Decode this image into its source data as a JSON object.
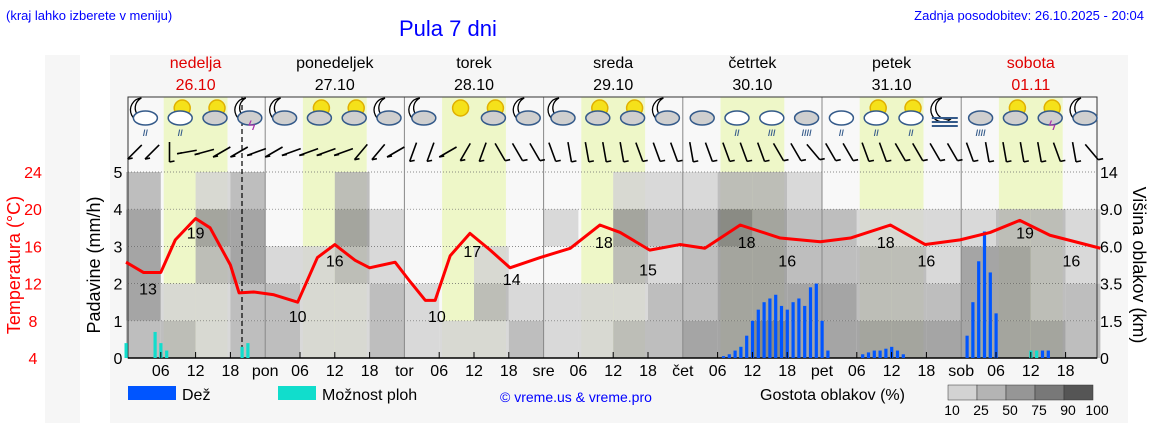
{
  "header": {
    "note": "(kraj lahko izberete v meniju)",
    "title": "Pula 7 dni",
    "updated": "Zadnja posodobitev: 26.10.2025 - 20:04"
  },
  "days": [
    {
      "name": "nedelja",
      "date": "26.10",
      "weekend": true,
      "abbr": ""
    },
    {
      "name": "ponedeljek",
      "date": "27.10",
      "weekend": false,
      "abbr": "pon"
    },
    {
      "name": "torek",
      "date": "28.10",
      "weekend": false,
      "abbr": "tor"
    },
    {
      "name": "sreda",
      "date": "29.10",
      "weekend": false,
      "abbr": "sre"
    },
    {
      "name": "četrtek",
      "date": "30.10",
      "weekend": false,
      "abbr": "čet"
    },
    {
      "name": "petek",
      "date": "31.10",
      "weekend": false,
      "abbr": "pet"
    },
    {
      "name": "sobota",
      "date": "01.11",
      "weekend": true,
      "abbr": "sob"
    }
  ],
  "icons": [
    "moon-cloud-light-rain",
    "sun-cloud-light-rain",
    "sun-cloud",
    "moon-cloud-thunder",
    "moon-cloud",
    "sun-cloud",
    "sun-cloud",
    "moon-cloud",
    "moon-cloud",
    "sun",
    "sun-cloud",
    "moon-cloud",
    "moon-cloud",
    "sun-cloud",
    "sun-cloud",
    "moon-cloud",
    "cloud",
    "cloud-light-rain",
    "cloud-moderate-rain",
    "cloud-heavy-rain",
    "cloud-light-rain",
    "sun-cloud-light-rain",
    "sun-cloud-light-rain",
    "moon-fog",
    "cloud-heavy-rain",
    "sun-cloud",
    "sun-cloud-thunder",
    "moon-cloud"
  ],
  "wind_direction_deg": [
    45,
    45,
    0,
    80,
    75,
    60,
    60,
    70,
    60,
    70,
    70,
    70,
    70,
    40,
    40,
    60,
    20,
    20,
    60,
    30,
    20,
    -30,
    -30,
    -30,
    -20,
    -10,
    -10,
    -10,
    -10,
    -20,
    -20,
    -20,
    -10,
    -20,
    -20,
    -20,
    -20,
    -30,
    -30,
    -40,
    -30,
    -30,
    -20,
    -20,
    -30,
    -30,
    -30,
    -30,
    -20,
    -10,
    -10,
    -10,
    -10,
    -20,
    -10,
    -40
  ],
  "colors": {
    "temp": "#ff0000",
    "rain": "#0055ff",
    "showers": "#11ddcc",
    "daylight": "#eef7c8",
    "now_line": "#000000"
  },
  "chart_data": {
    "type": "line",
    "title": "Pula 7 dni",
    "x_unit": "hours from 26.10 00:00",
    "xlim": [
      0,
      168
    ],
    "x_ticks": [
      "06",
      "12",
      "18"
    ],
    "now_hour": 20,
    "daylight_hours": [
      6.5,
      17.5
    ],
    "left_axis": {
      "label": "Temperatura (°C)",
      "ticks": [
        24,
        20,
        16,
        12,
        8,
        4
      ],
      "range": [
        4,
        24
      ]
    },
    "rain_axis": {
      "label": "Padavine (mm/h)",
      "ticks": [
        0,
        1,
        2,
        3,
        4,
        5
      ],
      "range": [
        0,
        5
      ]
    },
    "right_axis": {
      "label": "Višina oblakov (km)",
      "ticks": [
        "0",
        "1.5",
        "3.5",
        "6.0",
        "9.0",
        "14"
      ]
    },
    "temperature": [
      [
        0,
        14.3
      ],
      [
        3,
        13.2
      ],
      [
        6,
        13.2
      ],
      [
        8.5,
        16.7
      ],
      [
        12,
        19
      ],
      [
        14.5,
        18
      ],
      [
        18,
        14
      ],
      [
        19.5,
        11
      ],
      [
        22,
        11.1
      ],
      [
        25.5,
        10.8
      ],
      [
        29.6,
        10
      ],
      [
        33,
        14.8
      ],
      [
        36,
        16.2
      ],
      [
        39.5,
        14.5
      ],
      [
        42,
        13.7
      ],
      [
        46.4,
        14.3
      ],
      [
        49,
        12.2
      ],
      [
        51.6,
        10.2
      ],
      [
        53.3,
        10.2
      ],
      [
        55.9,
        15
      ],
      [
        59.3,
        17.4
      ],
      [
        62.8,
        15.6
      ],
      [
        66.2,
        13.7
      ],
      [
        71.4,
        14.8
      ],
      [
        76.6,
        15.8
      ],
      [
        81.7,
        18.3
      ],
      [
        85.2,
        17.5
      ],
      [
        90.3,
        15.6
      ],
      [
        95.5,
        16.2
      ],
      [
        99.8,
        15.8
      ],
      [
        105.9,
        18.3
      ],
      [
        112.8,
        16.9
      ],
      [
        119.7,
        16.5
      ],
      [
        124.9,
        16.9
      ],
      [
        131.8,
        18.3
      ],
      [
        137.8,
        16.2
      ],
      [
        143.8,
        16.7
      ],
      [
        149,
        17.5
      ],
      [
        154.1,
        18.8
      ],
      [
        159.3,
        17.2
      ],
      [
        168,
        15.8
      ]
    ],
    "temp_labels": [
      [
        3.8,
        13
      ],
      [
        12,
        19
      ],
      [
        29.6,
        10
      ],
      [
        36,
        16
      ],
      [
        53.6,
        10
      ],
      [
        59.7,
        17
      ],
      [
        66.5,
        14
      ],
      [
        82.4,
        18
      ],
      [
        90,
        15
      ],
      [
        107,
        18
      ],
      [
        114,
        16
      ],
      [
        131,
        18
      ],
      [
        138,
        16
      ],
      [
        155,
        19
      ],
      [
        163,
        16
      ]
    ],
    "rain": [
      [
        103,
        0.05
      ],
      [
        104,
        0.1
      ],
      [
        105,
        0.2
      ],
      [
        106,
        0.3
      ],
      [
        107,
        0.6
      ],
      [
        108,
        1.0
      ],
      [
        109,
        1.3
      ],
      [
        110,
        1.5
      ],
      [
        111,
        1.6
      ],
      [
        112,
        1.7
      ],
      [
        113,
        1.4
      ],
      [
        114,
        1.3
      ],
      [
        115,
        1.5
      ],
      [
        116,
        1.6
      ],
      [
        117,
        1.4
      ],
      [
        118,
        1.9
      ],
      [
        119,
        2.0
      ],
      [
        120,
        1.0
      ],
      [
        121,
        0.2
      ],
      [
        127,
        0.1
      ],
      [
        128,
        0.15
      ],
      [
        129,
        0.2
      ],
      [
        130,
        0.2
      ],
      [
        131,
        0.25
      ],
      [
        132,
        0.3
      ],
      [
        133,
        0.2
      ],
      [
        134,
        0.1
      ],
      [
        145,
        0.6
      ],
      [
        146,
        1.5
      ],
      [
        147,
        2.6
      ],
      [
        148,
        3.4
      ],
      [
        149,
        2.3
      ],
      [
        150,
        1.2
      ],
      [
        158,
        0.2
      ],
      [
        159,
        0.2
      ]
    ],
    "showers": [
      [
        0,
        0.4
      ],
      [
        5,
        0.7
      ],
      [
        6,
        0.4
      ],
      [
        7,
        0.2
      ],
      [
        20,
        0.3
      ],
      [
        21,
        0.4
      ],
      [
        106,
        0.3
      ],
      [
        146,
        0.7
      ],
      [
        147,
        1.2
      ],
      [
        148,
        1.5
      ],
      [
        149,
        0.9
      ],
      [
        156,
        0.2
      ],
      [
        157,
        0.2
      ]
    ],
    "cloud_cover_pct_by_6h_and_height_band": [
      [
        40,
        50,
        60,
        50,
        30
      ],
      [
        30,
        10,
        0,
        0,
        0
      ],
      [
        20,
        10,
        30,
        60,
        10
      ],
      [
        30,
        40,
        50,
        60,
        30
      ],
      [
        30,
        30,
        10,
        0,
        0
      ],
      [
        20,
        20,
        10,
        0,
        0
      ],
      [
        10,
        20,
        40,
        70,
        30
      ],
      [
        30,
        40,
        20,
        10,
        0
      ],
      [
        20,
        10,
        0,
        0,
        0
      ],
      [
        10,
        0,
        0,
        0,
        0
      ],
      [
        20,
        30,
        20,
        0,
        0
      ],
      [
        30,
        20,
        0,
        0,
        0
      ],
      [
        20,
        10,
        0,
        20,
        0
      ],
      [
        20,
        10,
        0,
        0,
        0
      ],
      [
        30,
        20,
        30,
        50,
        10
      ],
      [
        40,
        30,
        20,
        40,
        20
      ],
      [
        50,
        40,
        30,
        30,
        10
      ],
      [
        70,
        60,
        70,
        80,
        40
      ],
      [
        80,
        70,
        60,
        60,
        30
      ],
      [
        60,
        50,
        40,
        30,
        10
      ],
      [
        60,
        50,
        40,
        30,
        0
      ],
      [
        50,
        40,
        30,
        10,
        0
      ],
      [
        50,
        40,
        30,
        20,
        0
      ],
      [
        50,
        40,
        20,
        10,
        0
      ],
      [
        60,
        60,
        50,
        20,
        0
      ],
      [
        60,
        50,
        50,
        40,
        0
      ],
      [
        50,
        40,
        40,
        30,
        0
      ],
      [
        40,
        30,
        20,
        10,
        0
      ]
    ],
    "legend": {
      "rain": "Dež",
      "showers": "Možnost ploh",
      "credit": "© vreme.us & vreme.pro",
      "cloud_title": "Gostota oblakov (%)",
      "cloud_levels": [
        "10",
        "25",
        "50",
        "75",
        "90",
        "100"
      ],
      "cloud_colors": [
        "#d3d3d3",
        "#b4b4b4",
        "#969696",
        "#787878",
        "#555555"
      ]
    }
  }
}
